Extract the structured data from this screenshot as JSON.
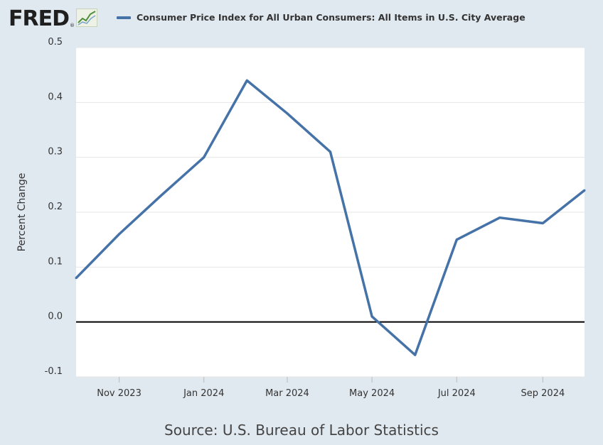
{
  "brand": {
    "name": "FRED",
    "trademark": "®",
    "logo_icon": "line-chart-icon"
  },
  "colors": {
    "background": "#e1e9f0",
    "plot_background": "#ffffff",
    "series": "#4572a7",
    "zero_line": "#000000",
    "grid": "#e6e6e6"
  },
  "source": "Source: U.S. Bureau of Labor Statistics",
  "chart_data": {
    "type": "line",
    "title": "",
    "legend_position": "top",
    "xlabel": "",
    "ylabel": "Percent Change",
    "ylim": [
      -0.1,
      0.5
    ],
    "yticks": [
      -0.1,
      0.0,
      0.1,
      0.2,
      0.3,
      0.4,
      0.5
    ],
    "ytick_labels": [
      "-0.1",
      "0.0",
      "0.1",
      "0.2",
      "0.3",
      "0.4",
      "0.5"
    ],
    "xlim": [
      "2023-10-01",
      "2024-10-01"
    ],
    "xticks": [
      "2023-11-01",
      "2024-01-01",
      "2024-03-01",
      "2024-05-01",
      "2024-07-01",
      "2024-09-01"
    ],
    "xtick_labels": [
      "Nov 2023",
      "Jan 2024",
      "Mar 2024",
      "May 2024",
      "Jul 2024",
      "Sep 2024"
    ],
    "grid": true,
    "zero_line": true,
    "series": [
      {
        "name": "Consumer Price Index for All Urban Consumers: All Items in U.S. City Average",
        "color": "#4572a7",
        "x": [
          "2023-10-01",
          "2023-11-01",
          "2023-12-01",
          "2024-01-01",
          "2024-02-01",
          "2024-03-01",
          "2024-04-01",
          "2024-05-01",
          "2024-06-01",
          "2024-07-01",
          "2024-08-01",
          "2024-09-01",
          "2024-10-01"
        ],
        "values": [
          0.08,
          0.16,
          0.23,
          0.3,
          0.44,
          0.38,
          0.31,
          0.01,
          -0.06,
          0.15,
          0.19,
          0.18,
          0.24
        ]
      }
    ]
  }
}
